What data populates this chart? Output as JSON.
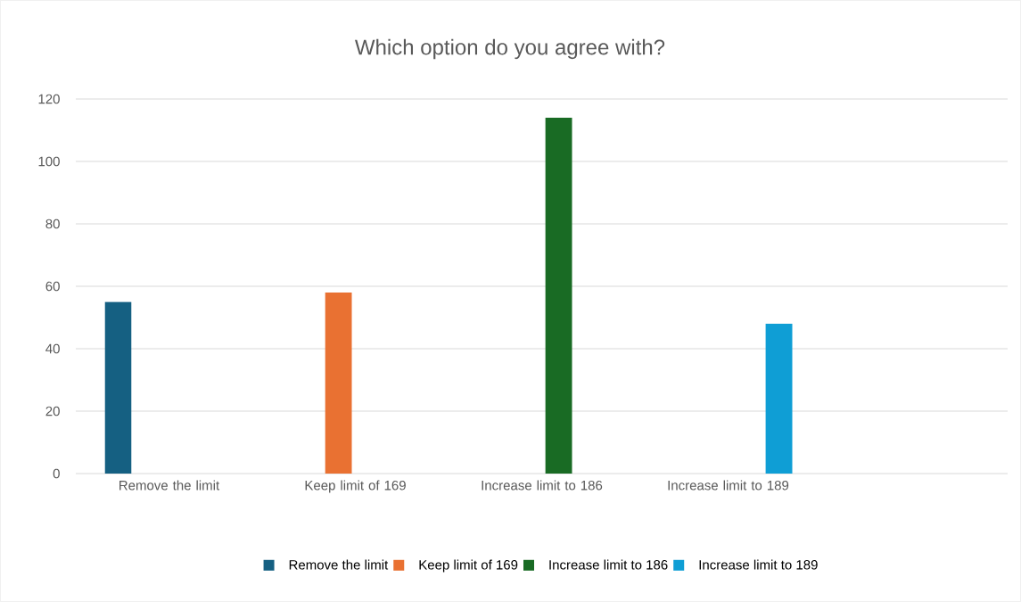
{
  "chart_data": {
    "type": "bar",
    "title": "Which option do you agree with?",
    "categories": [
      "Remove the limit",
      "Keep limit of 169",
      "Increase limit to 186",
      "Increase limit to 189",
      null
    ],
    "series": [
      {
        "name": "Remove the limit",
        "color": "#156082",
        "values": [
          55,
          null,
          null,
          null,
          null
        ]
      },
      {
        "name": "Keep limit of 169",
        "color": "#e97132",
        "values": [
          null,
          58,
          null,
          null,
          null
        ]
      },
      {
        "name": "Increase limit to 186",
        "color": "#196b24",
        "values": [
          null,
          null,
          114,
          null,
          null
        ]
      },
      {
        "name": "Increase limit to 189",
        "color": "#0f9ed5",
        "values": [
          null,
          null,
          null,
          48,
          null
        ]
      }
    ],
    "ylim": [
      0,
      120
    ],
    "yticks": [
      0,
      20,
      40,
      60,
      80,
      100,
      120
    ],
    "grid": "y",
    "legend": "bottom"
  }
}
